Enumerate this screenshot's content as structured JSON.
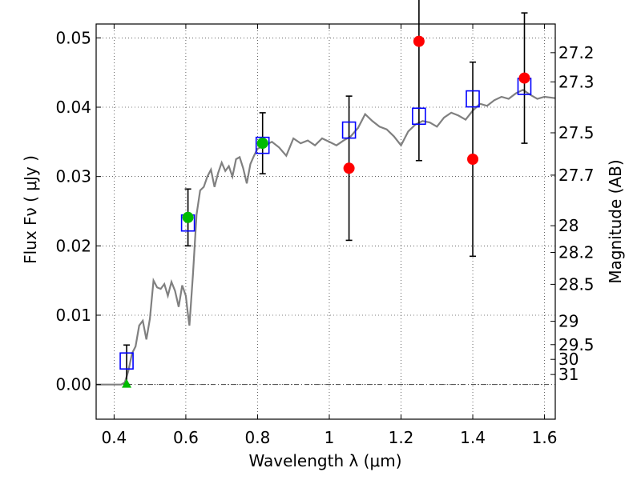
{
  "chart_data": {
    "type": "scatter",
    "xlabel": "Wavelength  λ (μm)",
    "ylabel": "Flux  Fν  ( μJy )",
    "y2label": "Magnitude (AB)",
    "xlim": [
      0.35,
      1.63
    ],
    "ylim": [
      -0.005,
      0.052
    ],
    "grid": true,
    "x_ticks": [
      {
        "v": 0.4,
        "label": "0.4"
      },
      {
        "v": 0.6,
        "label": "0.6"
      },
      {
        "v": 0.8,
        "label": "0.8"
      },
      {
        "v": 1.0,
        "label": "1"
      },
      {
        "v": 1.2,
        "label": "1.2"
      },
      {
        "v": 1.4,
        "label": "1.4"
      },
      {
        "v": 1.6,
        "label": "1.6"
      }
    ],
    "y_ticks": [
      {
        "v": 0.0,
        "label": "0.00"
      },
      {
        "v": 0.01,
        "label": "0.01"
      },
      {
        "v": 0.02,
        "label": "0.02"
      },
      {
        "v": 0.03,
        "label": "0.03"
      },
      {
        "v": 0.04,
        "label": "0.04"
      },
      {
        "v": 0.05,
        "label": "0.05"
      }
    ],
    "mag_ticks": [
      {
        "mag": 27.2,
        "label": "27.2"
      },
      {
        "mag": 27.3,
        "label": "27.3"
      },
      {
        "mag": 27.5,
        "label": "27.5"
      },
      {
        "mag": 27.7,
        "label": "27.7"
      },
      {
        "mag": 28,
        "label": "28"
      },
      {
        "mag": 28.2,
        "label": "28.2"
      },
      {
        "mag": 28.5,
        "label": "28.5"
      },
      {
        "mag": 29,
        "label": "29"
      },
      {
        "mag": 29.5,
        "label": "29.5"
      },
      {
        "mag": 30,
        "label": "30"
      },
      {
        "mag": 31,
        "label": "31"
      }
    ],
    "model_spectrum": {
      "color": "#808080",
      "points": [
        [
          0.35,
          0.0
        ],
        [
          0.4,
          0.0
        ],
        [
          0.42,
          0.0
        ],
        [
          0.43,
          0.0003
        ],
        [
          0.44,
          0.002
        ],
        [
          0.45,
          0.0045
        ],
        [
          0.46,
          0.0055
        ],
        [
          0.47,
          0.0085
        ],
        [
          0.48,
          0.0092
        ],
        [
          0.49,
          0.0065
        ],
        [
          0.5,
          0.0095
        ],
        [
          0.51,
          0.015
        ],
        [
          0.52,
          0.014
        ],
        [
          0.53,
          0.0138
        ],
        [
          0.54,
          0.0145
        ],
        [
          0.55,
          0.0128
        ],
        [
          0.56,
          0.0148
        ],
        [
          0.57,
          0.0135
        ],
        [
          0.58,
          0.0112
        ],
        [
          0.59,
          0.0143
        ],
        [
          0.6,
          0.0128
        ],
        [
          0.605,
          0.0105
        ],
        [
          0.61,
          0.0085
        ],
        [
          0.62,
          0.016
        ],
        [
          0.63,
          0.0245
        ],
        [
          0.64,
          0.028
        ],
        [
          0.65,
          0.0285
        ],
        [
          0.66,
          0.03
        ],
        [
          0.67,
          0.031
        ],
        [
          0.68,
          0.0285
        ],
        [
          0.69,
          0.0305
        ],
        [
          0.7,
          0.032
        ],
        [
          0.71,
          0.0308
        ],
        [
          0.72,
          0.0315
        ],
        [
          0.73,
          0.03
        ],
        [
          0.74,
          0.0325
        ],
        [
          0.75,
          0.0328
        ],
        [
          0.76,
          0.0312
        ],
        [
          0.77,
          0.029
        ],
        [
          0.78,
          0.0318
        ],
        [
          0.79,
          0.033
        ],
        [
          0.8,
          0.034
        ],
        [
          0.82,
          0.0345
        ],
        [
          0.84,
          0.035
        ],
        [
          0.86,
          0.0342
        ],
        [
          0.88,
          0.033
        ],
        [
          0.9,
          0.0355
        ],
        [
          0.92,
          0.0348
        ],
        [
          0.94,
          0.0352
        ],
        [
          0.96,
          0.0345
        ],
        [
          0.98,
          0.0355
        ],
        [
          1.0,
          0.035
        ],
        [
          1.02,
          0.0345
        ],
        [
          1.04,
          0.0352
        ],
        [
          1.06,
          0.0358
        ],
        [
          1.08,
          0.037
        ],
        [
          1.1,
          0.039
        ],
        [
          1.12,
          0.038
        ],
        [
          1.14,
          0.0372
        ],
        [
          1.16,
          0.0368
        ],
        [
          1.18,
          0.0358
        ],
        [
          1.2,
          0.0345
        ],
        [
          1.22,
          0.0365
        ],
        [
          1.24,
          0.0375
        ],
        [
          1.26,
          0.038
        ],
        [
          1.28,
          0.0378
        ],
        [
          1.3,
          0.0372
        ],
        [
          1.32,
          0.0385
        ],
        [
          1.34,
          0.0392
        ],
        [
          1.36,
          0.0388
        ],
        [
          1.38,
          0.0382
        ],
        [
          1.4,
          0.0395
        ],
        [
          1.42,
          0.0405
        ],
        [
          1.44,
          0.0402
        ],
        [
          1.46,
          0.041
        ],
        [
          1.48,
          0.0415
        ],
        [
          1.5,
          0.0412
        ],
        [
          1.52,
          0.042
        ],
        [
          1.54,
          0.0425
        ],
        [
          1.56,
          0.0418
        ],
        [
          1.58,
          0.0412
        ],
        [
          1.6,
          0.0415
        ],
        [
          1.63,
          0.0413
        ]
      ]
    },
    "model_photometry": {
      "marker": "open-square",
      "color": "#0000ff",
      "points": [
        {
          "x": 0.435,
          "y": 0.0034
        },
        {
          "x": 0.606,
          "y": 0.0233
        },
        {
          "x": 0.814,
          "y": 0.0345
        },
        {
          "x": 1.055,
          "y": 0.0367
        },
        {
          "x": 1.25,
          "y": 0.0387
        },
        {
          "x": 1.4,
          "y": 0.0412
        },
        {
          "x": 1.544,
          "y": 0.043
        }
      ]
    },
    "observed_detections": {
      "marker": "filled-circle",
      "color": "#00bb00",
      "points": [
        {
          "x": 0.606,
          "y": 0.0241,
          "err": 0.0041
        },
        {
          "x": 0.814,
          "y": 0.0348,
          "err": 0.0044
        }
      ]
    },
    "observed_nir": {
      "marker": "filled-circle",
      "color": "#ff0000",
      "points": [
        {
          "x": 1.055,
          "y": 0.0312,
          "err": 0.0104
        },
        {
          "x": 1.25,
          "y": 0.0495,
          "err": 0.0172
        },
        {
          "x": 1.4,
          "y": 0.0325,
          "err": 0.014
        },
        {
          "x": 1.544,
          "y": 0.0442,
          "err": 0.0094
        }
      ]
    },
    "upper_limit": {
      "marker": "filled-triangle",
      "color": "#00bb00",
      "point": {
        "x": 0.435,
        "y": 0.0,
        "err_top": 0.0057
      }
    },
    "zero_line": {
      "y": 0.0,
      "style": "dash-dot",
      "color": "#444444"
    }
  }
}
